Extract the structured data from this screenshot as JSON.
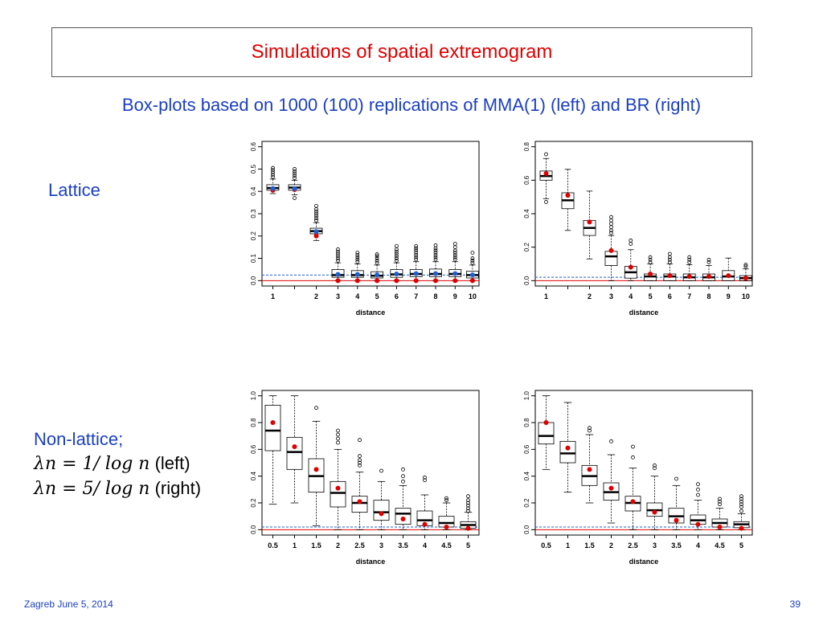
{
  "slide": {
    "title": "Simulations of spatial extremogram",
    "subtitle": "Box-plots based on 1000 (100) replications of MMA(1) (left) and BR (right)",
    "label_lattice": "Lattice",
    "label_nonlattice": "Non-lattice;",
    "lambda_left_expr": "λn = 1/ log n",
    "lambda_left_note": "(left)",
    "lambda_right_expr": "λn = 5/ log n",
    "lambda_right_note": "(right)",
    "footer_left": "Zagreb June 5, 2014",
    "page_number": "39"
  },
  "colors": {
    "text_blue": "#1a3fc0",
    "title_red": "#e00000",
    "ref_red": "#e00000",
    "ref_blue": "#1f5fd0",
    "mean_red": "#e00000",
    "mean_blue": "#1f5fd0"
  },
  "chart_data": [
    {
      "type": "box",
      "xlabel": "distance",
      "ylim": [
        0,
        0.6
      ],
      "yticks": [
        0.0,
        0.1,
        0.2,
        0.3,
        0.4,
        0.5,
        0.6
      ],
      "ytick_labels": [
        "0.0",
        "0.1",
        "0.2",
        "0.3",
        "0.4",
        "0.5",
        "0.6"
      ],
      "red_line": 0.0,
      "blue_dashed_line": 0.025,
      "boxes": [
        {
          "x": "1",
          "low": 0.39,
          "q1": 0.405,
          "med": 0.415,
          "q3": 0.43,
          "high": 0.455,
          "mean_red": 0.405,
          "mean_blue": 0.413,
          "outliers": [
            0.465,
            0.475,
            0.485,
            0.495,
            0.505
          ]
        },
        {
          "x": "1",
          "low": 0.385,
          "q1": 0.405,
          "med": 0.417,
          "q3": 0.43,
          "high": 0.45,
          "mean_red": 0.408,
          "mean_blue": 0.412,
          "outliers": [
            0.37,
            0.46,
            0.47,
            0.48,
            0.49,
            0.5
          ]
        },
        {
          "x": "2",
          "low": 0.18,
          "q1": 0.21,
          "med": 0.222,
          "q3": 0.235,
          "high": 0.26,
          "mean_red": 0.2,
          "mean_blue": 0.22,
          "outliers": [
            0.27,
            0.28,
            0.29,
            0.3,
            0.31,
            0.32,
            0.335
          ]
        },
        {
          "x": "3",
          "low": 0.0,
          "q1": 0.015,
          "med": 0.025,
          "q3": 0.05,
          "high": 0.08,
          "mean_red": 0.0,
          "mean_blue": 0.028,
          "outliers": [
            0.09,
            0.1,
            0.11,
            0.12,
            0.13,
            0.14
          ]
        },
        {
          "x": "4",
          "low": 0.0,
          "q1": 0.015,
          "med": 0.025,
          "q3": 0.045,
          "high": 0.075,
          "mean_red": 0.0,
          "mean_blue": 0.028,
          "outliers": [
            0.085,
            0.095,
            0.105,
            0.115,
            0.125
          ]
        },
        {
          "x": "5",
          "low": 0.0,
          "q1": 0.012,
          "med": 0.022,
          "q3": 0.04,
          "high": 0.07,
          "mean_red": 0.0,
          "mean_blue": 0.026,
          "outliers": [
            0.08,
            0.09,
            0.1,
            0.11,
            0.118
          ]
        },
        {
          "x": "6",
          "low": 0.0,
          "q1": 0.015,
          "med": 0.028,
          "q3": 0.05,
          "high": 0.08,
          "mean_red": 0.0,
          "mean_blue": 0.03,
          "outliers": [
            0.09,
            0.1,
            0.11,
            0.12,
            0.13,
            0.14,
            0.155
          ]
        },
        {
          "x": "7",
          "low": 0.0,
          "q1": 0.018,
          "med": 0.03,
          "q3": 0.05,
          "high": 0.085,
          "mean_red": 0.0,
          "mean_blue": 0.032,
          "outliers": [
            0.095,
            0.105,
            0.115,
            0.125,
            0.135,
            0.145,
            0.155
          ]
        },
        {
          "x": "8",
          "low": 0.0,
          "q1": 0.018,
          "med": 0.03,
          "q3": 0.052,
          "high": 0.085,
          "mean_red": 0.0,
          "mean_blue": 0.032,
          "outliers": [
            0.095,
            0.105,
            0.115,
            0.125,
            0.135,
            0.145,
            0.158
          ]
        },
        {
          "x": "9",
          "low": 0.0,
          "q1": 0.018,
          "med": 0.03,
          "q3": 0.05,
          "high": 0.085,
          "mean_red": 0.0,
          "mean_blue": 0.032,
          "outliers": [
            0.095,
            0.105,
            0.115,
            0.125,
            0.135,
            0.15,
            0.165
          ]
        },
        {
          "x": "10",
          "low": 0.0,
          "q1": 0.012,
          "med": 0.025,
          "q3": 0.042,
          "high": 0.07,
          "mean_red": 0.0,
          "mean_blue": 0.026,
          "outliers": [
            0.08,
            0.09,
            0.1,
            0.125
          ]
        }
      ]
    },
    {
      "type": "box",
      "xlabel": "distance",
      "ylim": [
        0,
        0.8
      ],
      "yticks": [
        0.0,
        0.2,
        0.4,
        0.6,
        0.8
      ],
      "ytick_labels": [
        "0.0",
        "0.2",
        "0.4",
        "0.6",
        "0.8"
      ],
      "red_line": 0.0,
      "blue_dashed_line": 0.02,
      "boxes": [
        {
          "x": "1",
          "low": 0.49,
          "q1": 0.6,
          "med": 0.625,
          "q3": 0.655,
          "high": 0.73,
          "mean_red": 0.64,
          "outliers": [
            0.47,
            0.755
          ]
        },
        {
          "x": "1",
          "low": 0.3,
          "q1": 0.43,
          "med": 0.48,
          "q3": 0.525,
          "high": 0.665,
          "mean_red": 0.51,
          "outliers": []
        },
        {
          "x": "2",
          "low": 0.13,
          "q1": 0.27,
          "med": 0.315,
          "q3": 0.36,
          "high": 0.535,
          "mean_red": 0.35,
          "outliers": []
        },
        {
          "x": "3",
          "low": 0.0,
          "q1": 0.09,
          "med": 0.145,
          "q3": 0.175,
          "high": 0.27,
          "mean_red": 0.18,
          "outliers": [
            0.285,
            0.3,
            0.32,
            0.34,
            0.36,
            0.38
          ]
        },
        {
          "x": "4",
          "low": 0.0,
          "q1": 0.015,
          "med": 0.05,
          "q3": 0.085,
          "high": 0.185,
          "mean_red": 0.08,
          "outliers": [
            0.22,
            0.24
          ]
        },
        {
          "x": "5",
          "low": 0.0,
          "q1": 0.0,
          "med": 0.025,
          "q3": 0.04,
          "high": 0.1,
          "mean_red": 0.04,
          "outliers": [
            0.11,
            0.125,
            0.14
          ]
        },
        {
          "x": "6",
          "low": 0.0,
          "q1": 0.0,
          "med": 0.025,
          "q3": 0.04,
          "high": 0.1,
          "mean_red": 0.03,
          "outliers": [
            0.11,
            0.125,
            0.14,
            0.16
          ]
        },
        {
          "x": "7",
          "low": 0.0,
          "q1": 0.0,
          "med": 0.02,
          "q3": 0.04,
          "high": 0.095,
          "mean_red": 0.025,
          "outliers": [
            0.11,
            0.125,
            0.14
          ]
        },
        {
          "x": "8",
          "low": 0.0,
          "q1": 0.0,
          "med": 0.02,
          "q3": 0.04,
          "high": 0.09,
          "mean_red": 0.025,
          "outliers": [
            0.11,
            0.125
          ]
        },
        {
          "x": "9",
          "low": 0.0,
          "q1": 0.0,
          "med": 0.025,
          "q3": 0.06,
          "high": 0.135,
          "mean_red": 0.03,
          "outliers": []
        },
        {
          "x": "10",
          "low": 0.0,
          "q1": 0.0,
          "med": 0.015,
          "q3": 0.03,
          "high": 0.07,
          "mean_red": 0.015,
          "outliers": [
            0.085,
            0.095
          ]
        }
      ]
    },
    {
      "type": "box",
      "xlabel": "distance",
      "ylim": [
        0,
        1.0
      ],
      "yticks": [
        0.0,
        0.2,
        0.4,
        0.6,
        0.8,
        1.0
      ],
      "ytick_labels": [
        "0.0",
        "0.2",
        "0.4",
        "0.6",
        "0.8",
        "1.0"
      ],
      "red_line": 0.0,
      "blue_dashed_line": 0.02,
      "boxes": [
        {
          "x": "0.5",
          "low": 0.19,
          "q1": 0.59,
          "med": 0.74,
          "q3": 0.93,
          "high": 1.0,
          "mean_red": 0.8,
          "outliers": []
        },
        {
          "x": "1",
          "low": 0.2,
          "q1": 0.45,
          "med": 0.58,
          "q3": 0.69,
          "high": 1.0,
          "mean_red": 0.62,
          "outliers": []
        },
        {
          "x": "1.5",
          "low": 0.03,
          "q1": 0.28,
          "med": 0.4,
          "q3": 0.53,
          "high": 0.81,
          "mean_red": 0.45,
          "outliers": [
            0.91
          ]
        },
        {
          "x": "2",
          "low": 0.0,
          "q1": 0.17,
          "med": 0.275,
          "q3": 0.36,
          "high": 0.6,
          "mean_red": 0.31,
          "outliers": [
            0.65,
            0.68,
            0.71,
            0.74
          ]
        },
        {
          "x": "2.5",
          "low": 0.0,
          "q1": 0.13,
          "med": 0.2,
          "q3": 0.25,
          "high": 0.43,
          "mean_red": 0.21,
          "outliers": [
            0.48,
            0.5,
            0.52,
            0.55,
            0.67
          ]
        },
        {
          "x": "3",
          "low": 0.0,
          "q1": 0.07,
          "med": 0.13,
          "q3": 0.22,
          "high": 0.36,
          "mean_red": 0.12,
          "outliers": [
            0.44
          ]
        },
        {
          "x": "3.5",
          "low": 0.0,
          "q1": 0.04,
          "med": 0.12,
          "q3": 0.16,
          "high": 0.33,
          "mean_red": 0.08,
          "outliers": [
            0.36,
            0.4,
            0.45
          ]
        },
        {
          "x": "4",
          "low": 0.0,
          "q1": 0.03,
          "med": 0.07,
          "q3": 0.14,
          "high": 0.26,
          "mean_red": 0.04,
          "outliers": [
            0.37,
            0.39
          ]
        },
        {
          "x": "4.5",
          "low": 0.0,
          "q1": 0.02,
          "med": 0.05,
          "q3": 0.1,
          "high": 0.2,
          "mean_red": 0.02,
          "outliers": [
            0.22,
            0.235
          ]
        },
        {
          "x": "5",
          "low": 0.0,
          "q1": 0.01,
          "med": 0.035,
          "q3": 0.06,
          "high": 0.13,
          "mean_red": 0.01,
          "outliers": [
            0.14,
            0.16,
            0.18,
            0.2,
            0.22,
            0.25
          ]
        }
      ]
    },
    {
      "type": "box",
      "xlabel": "distance",
      "ylim": [
        0,
        1.0
      ],
      "yticks": [
        0.0,
        0.2,
        0.4,
        0.6,
        0.8,
        1.0
      ],
      "ytick_labels": [
        "0.0",
        "0.2",
        "0.4",
        "0.6",
        "0.8",
        "1.0"
      ],
      "red_line": 0.0,
      "blue_dashed_line": 0.02,
      "boxes": [
        {
          "x": "0.5",
          "low": 0.45,
          "q1": 0.64,
          "med": 0.7,
          "q3": 0.8,
          "high": 1.0,
          "mean_red": 0.8,
          "outliers": []
        },
        {
          "x": "1",
          "low": 0.28,
          "q1": 0.5,
          "med": 0.57,
          "q3": 0.66,
          "high": 0.95,
          "mean_red": 0.61,
          "outliers": []
        },
        {
          "x": "1.5",
          "low": 0.2,
          "q1": 0.33,
          "med": 0.4,
          "q3": 0.48,
          "high": 0.71,
          "mean_red": 0.45,
          "outliers": [
            0.74,
            0.76
          ]
        },
        {
          "x": "2",
          "low": 0.05,
          "q1": 0.22,
          "med": 0.28,
          "q3": 0.35,
          "high": 0.56,
          "mean_red": 0.31,
          "outliers": [
            0.66
          ]
        },
        {
          "x": "2.5",
          "low": 0.0,
          "q1": 0.14,
          "med": 0.2,
          "q3": 0.25,
          "high": 0.46,
          "mean_red": 0.21,
          "outliers": [
            0.54,
            0.62
          ]
        },
        {
          "x": "3",
          "low": 0.0,
          "q1": 0.1,
          "med": 0.145,
          "q3": 0.2,
          "high": 0.4,
          "mean_red": 0.13,
          "outliers": [
            0.46,
            0.48
          ]
        },
        {
          "x": "3.5",
          "low": 0.0,
          "q1": 0.05,
          "med": 0.1,
          "q3": 0.16,
          "high": 0.33,
          "mean_red": 0.07,
          "outliers": [
            0.38
          ]
        },
        {
          "x": "4",
          "low": 0.0,
          "q1": 0.04,
          "med": 0.07,
          "q3": 0.11,
          "high": 0.22,
          "mean_red": 0.04,
          "outliers": [
            0.26,
            0.3,
            0.34
          ]
        },
        {
          "x": "4.5",
          "low": 0.0,
          "q1": 0.02,
          "med": 0.05,
          "q3": 0.08,
          "high": 0.16,
          "mean_red": 0.02,
          "outliers": [
            0.19,
            0.21,
            0.23
          ]
        },
        {
          "x": "5",
          "low": 0.0,
          "q1": 0.015,
          "med": 0.04,
          "q3": 0.06,
          "high": 0.12,
          "mean_red": 0.01,
          "outliers": [
            0.14,
            0.17,
            0.19,
            0.21,
            0.23,
            0.25
          ]
        }
      ]
    }
  ]
}
